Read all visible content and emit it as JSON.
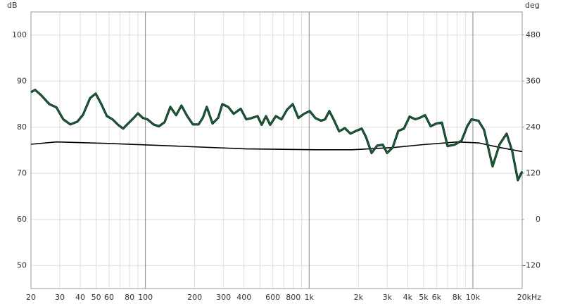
{
  "chart_data": {
    "type": "line",
    "y_label": "dB",
    "y2_label": "deg",
    "xscale": "log",
    "grid": true,
    "xlim": [
      20,
      20000
    ],
    "xticks": [
      20,
      30,
      40,
      50,
      60,
      80,
      100,
      200,
      300,
      400,
      600,
      800,
      {
        "value": 1000,
        "label": "1k"
      },
      {
        "value": 2000,
        "label": "2k"
      },
      {
        "value": 3000,
        "label": "3k"
      },
      {
        "value": 4000,
        "label": "4k"
      },
      {
        "value": 5000,
        "label": "5k"
      },
      {
        "value": 6000,
        "label": "6k"
      },
      {
        "value": 8000,
        "label": "8k"
      },
      {
        "value": 10000,
        "label": "10k"
      },
      {
        "value": 20000,
        "label": "20kHz"
      }
    ],
    "x_minor_grid": [
      70,
      90,
      500,
      700,
      900,
      7000,
      9000
    ],
    "ylim": [
      45,
      105
    ],
    "yticks": [
      50,
      60,
      70,
      80,
      90,
      100
    ],
    "y2lim": [
      -180,
      540
    ],
    "y2ticks": [
      -120,
      0,
      120,
      240,
      360,
      480
    ],
    "series": [
      {
        "color": "#1b5e3a",
        "x": [
          20,
          21.2,
          23,
          25.9,
          28.6,
          31.5,
          34.8,
          38.4,
          41.6,
          45.9,
          49.7,
          53.8,
          58.2,
          63,
          68.2,
          73.1,
          78.4,
          84.8,
          90,
          96.5,
          103,
          112,
          121,
          131,
          142,
          154,
          166,
          180,
          195,
          211,
          224,
          237,
          257,
          278,
          295,
          320,
          346,
          382,
          413,
          447,
          484,
          513,
          545,
          578,
          626,
          678,
          733,
          794,
          859,
          930,
          1007,
          1090,
          1180,
          1251,
          1328,
          1410,
          1525,
          1651,
          1787,
          1935,
          2094,
          2222,
          2405,
          2604,
          2818,
          2991,
          3237,
          3504,
          3793,
          4106,
          4444,
          4713,
          5103,
          5522,
          5977,
          6470,
          7003,
          7729,
          8530,
          9234,
          9797,
          10820,
          11710,
          13190,
          14560,
          16070,
          17390,
          18820,
          20000
        ],
        "values": [
          87.6,
          88.1,
          87.0,
          85.0,
          84.3,
          81.7,
          80.6,
          81.2,
          82.7,
          86.3,
          87.3,
          85.0,
          82.4,
          81.7,
          80.5,
          79.7,
          80.8,
          82.0,
          83.0,
          82.0,
          81.7,
          80.6,
          80.2,
          81.1,
          84.4,
          82.6,
          84.7,
          82.4,
          80.6,
          80.6,
          82.0,
          84.4,
          80.8,
          82.0,
          85.0,
          84.4,
          82.9,
          84.0,
          81.7,
          82.0,
          82.4,
          80.5,
          82.4,
          80.5,
          82.4,
          81.7,
          83.8,
          85.0,
          82.0,
          82.9,
          83.5,
          82.0,
          81.4,
          81.7,
          83.5,
          81.7,
          79.1,
          79.8,
          78.6,
          79.2,
          79.7,
          77.9,
          74.4,
          76.0,
          76.2,
          74.4,
          75.6,
          79.2,
          79.7,
          82.3,
          81.7,
          82.0,
          82.6,
          80.2,
          80.8,
          81.0,
          75.9,
          76.2,
          77.1,
          80.2,
          81.7,
          81.4,
          79.4,
          71.5,
          76.3,
          78.6,
          74.8,
          68.5,
          70.4
        ]
      },
      {
        "color": "#000000",
        "x": [
          20,
          28.6,
          57.1,
          154,
          413,
          1111,
          1823,
          3300,
          4900,
          8040,
          10820,
          14560,
          20000
        ],
        "values": [
          76.3,
          76.8,
          76.5,
          75.9,
          75.3,
          75.1,
          75.1,
          75.6,
          76.2,
          76.8,
          76.6,
          75.6,
          74.7
        ]
      }
    ]
  }
}
